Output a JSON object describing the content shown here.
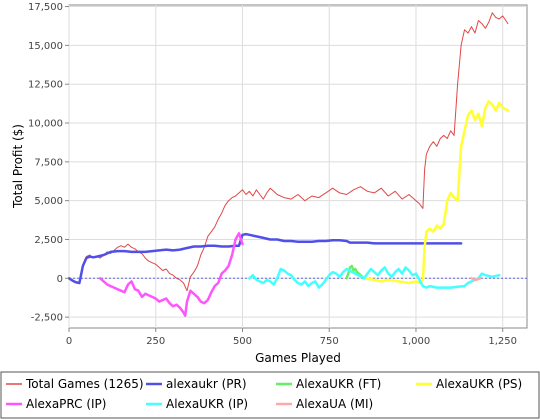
{
  "chart_data": {
    "type": "line",
    "title": "",
    "xlabel": "Games Played",
    "ylabel": "Total Profit ($)",
    "xlim": [
      0,
      1320
    ],
    "ylim": [
      -3200,
      17600
    ],
    "x_ticks": [
      {
        "value": 0,
        "label": "0"
      },
      {
        "value": 250,
        "label": "250"
      },
      {
        "value": 500,
        "label": "500"
      },
      {
        "value": 750,
        "label": "750"
      },
      {
        "value": 1000,
        "label": "1,000"
      },
      {
        "value": 1250,
        "label": "1,250"
      }
    ],
    "y_ticks": [
      {
        "value": -2500,
        "label": "-2,500"
      },
      {
        "value": 0,
        "label": "0"
      },
      {
        "value": 2500,
        "label": "2,500"
      },
      {
        "value": 5000,
        "label": "5,000"
      },
      {
        "value": 7500,
        "label": "7,500"
      },
      {
        "value": 10000,
        "label": "10,000"
      },
      {
        "value": 12500,
        "label": "12,500"
      },
      {
        "value": 15000,
        "label": "15,000"
      },
      {
        "value": 17500,
        "label": "17,500"
      }
    ],
    "grid": true,
    "legend_position": "bottom",
    "series": [
      {
        "name": "Total Games (1265)",
        "color": "#e04848",
        "width": 1,
        "x": [
          0,
          10,
          20,
          30,
          40,
          50,
          60,
          70,
          80,
          90,
          100,
          110,
          120,
          130,
          140,
          150,
          160,
          170,
          180,
          190,
          200,
          210,
          220,
          230,
          240,
          250,
          260,
          270,
          280,
          290,
          300,
          310,
          320,
          330,
          340,
          350,
          360,
          370,
          380,
          390,
          400,
          410,
          420,
          430,
          440,
          450,
          460,
          470,
          480,
          490,
          500,
          510,
          520,
          530,
          540,
          550,
          560,
          570,
          580,
          590,
          600,
          620,
          640,
          660,
          680,
          700,
          720,
          740,
          760,
          780,
          800,
          820,
          840,
          860,
          880,
          900,
          920,
          940,
          960,
          980,
          1000,
          1010,
          1020,
          1025,
          1030,
          1040,
          1050,
          1060,
          1070,
          1080,
          1090,
          1100,
          1110,
          1120,
          1130,
          1140,
          1150,
          1160,
          1170,
          1180,
          1190,
          1200,
          1210,
          1220,
          1230,
          1240,
          1250,
          1265
        ],
        "y": [
          0,
          -200,
          -300,
          -350,
          900,
          1400,
          1500,
          1300,
          1400,
          1300,
          1500,
          1700,
          1600,
          1800,
          2000,
          2100,
          2000,
          2200,
          2000,
          1900,
          1700,
          1600,
          1300,
          1100,
          1000,
          900,
          700,
          500,
          600,
          300,
          200,
          0,
          -100,
          -300,
          -800,
          100,
          400,
          800,
          1500,
          2000,
          2700,
          3000,
          3300,
          3800,
          4200,
          4700,
          5000,
          5200,
          5300,
          5500,
          5700,
          5400,
          5600,
          5300,
          5700,
          5400,
          5100,
          5500,
          5800,
          5600,
          5400,
          5200,
          5100,
          5400,
          5000,
          5300,
          5200,
          5500,
          5800,
          5500,
          5400,
          5700,
          5900,
          5600,
          5500,
          5800,
          5300,
          5600,
          5100,
          5400,
          5000,
          4800,
          4500,
          7000,
          8000,
          8500,
          8800,
          8500,
          9000,
          9200,
          9000,
          9500,
          9200,
          12500,
          15000,
          16000,
          15800,
          16200,
          15800,
          16600,
          16400,
          16100,
          16500,
          17100,
          16800,
          16700,
          16900,
          16400
        ],
        "style": "solid"
      },
      {
        "name": "alexaukr (PR)",
        "color": "#5050e8",
        "width": 2.5,
        "x": [
          0,
          10,
          20,
          30,
          40,
          50,
          60,
          70,
          80,
          100,
          120,
          140,
          160,
          180,
          200,
          220,
          240,
          260,
          280,
          300,
          320,
          340,
          360,
          380,
          400,
          420,
          440,
          460,
          480,
          490,
          500,
          510,
          520,
          540,
          560,
          580,
          600,
          620,
          640,
          660,
          680,
          700,
          720,
          740,
          760,
          780,
          800,
          810,
          820,
          840,
          860,
          880,
          900,
          920,
          940,
          960,
          980,
          1000,
          1050,
          1100,
          1130
        ],
        "y": [
          0,
          -150,
          -250,
          -300,
          800,
          1300,
          1400,
          1350,
          1400,
          1500,
          1700,
          1750,
          1750,
          1700,
          1700,
          1700,
          1750,
          1800,
          1850,
          1800,
          1850,
          1950,
          2050,
          2050,
          2100,
          2100,
          2050,
          2050,
          2100,
          2100,
          2800,
          2850,
          2800,
          2700,
          2600,
          2500,
          2500,
          2400,
          2400,
          2350,
          2350,
          2350,
          2400,
          2400,
          2450,
          2450,
          2400,
          2300,
          2300,
          2300,
          2300,
          2250,
          2250,
          2250,
          2250,
          2250,
          2250,
          2250,
          2250,
          2250,
          2250
        ],
        "style": "solid"
      },
      {
        "name": "AlexaUKR (FT)",
        "color": "#66ee66",
        "width": 2.5,
        "x": [
          800,
          805,
          810,
          815,
          820,
          825,
          830,
          835,
          840,
          845,
          850
        ],
        "y": [
          0,
          300,
          700,
          800,
          500,
          600,
          400,
          300,
          200,
          100,
          0
        ],
        "style": "solid"
      },
      {
        "name": "AlexaUKR (PS)",
        "color": "#ffff33",
        "width": 2.5,
        "x": [
          850,
          880,
          900,
          920,
          950,
          980,
          1000,
          1010,
          1020,
          1025,
          1030,
          1040,
          1050,
          1060,
          1070,
          1080,
          1090,
          1100,
          1110,
          1120,
          1130,
          1140,
          1150,
          1160,
          1170,
          1180,
          1190,
          1200,
          1210,
          1220,
          1230,
          1240,
          1250,
          1265
        ],
        "y": [
          0,
          -100,
          -200,
          -100,
          -200,
          -300,
          -200,
          -300,
          -100,
          2000,
          3000,
          3200,
          3000,
          3400,
          3200,
          3500,
          5000,
          5500,
          5200,
          5000,
          8500,
          9500,
          10500,
          10800,
          10200,
          10600,
          9800,
          11000,
          11400,
          11200,
          10800,
          11300,
          11000,
          10800
        ],
        "style": "solid"
      },
      {
        "name": "AlexaPRC (IP)",
        "color": "#ff55ff",
        "width": 2.5,
        "x": [
          90,
          100,
          110,
          120,
          130,
          140,
          150,
          160,
          170,
          180,
          190,
          200,
          210,
          220,
          230,
          240,
          250,
          260,
          270,
          280,
          290,
          300,
          310,
          320,
          330,
          335,
          340,
          350,
          360,
          370,
          380,
          390,
          400,
          410,
          420,
          430,
          440,
          450,
          460,
          470,
          480,
          490,
          500
        ],
        "y": [
          0,
          -200,
          -400,
          -500,
          -600,
          -700,
          -800,
          -900,
          -400,
          -200,
          -700,
          -800,
          -1200,
          -1000,
          -1100,
          -1200,
          -1300,
          -1500,
          -1400,
          -1300,
          -1600,
          -1800,
          -1700,
          -1900,
          -2200,
          -2400,
          -1500,
          -800,
          -1000,
          -1200,
          -1500,
          -1600,
          -1400,
          -900,
          -500,
          -300,
          300,
          500,
          800,
          1500,
          2500,
          2900,
          2200
        ],
        "style": "solid"
      },
      {
        "name": "AlexaUKR (IP)",
        "color": "#44ffff",
        "width": 2.5,
        "x": [
          520,
          530,
          540,
          550,
          560,
          570,
          580,
          590,
          600,
          610,
          620,
          630,
          640,
          650,
          660,
          670,
          680,
          690,
          700,
          710,
          720,
          730,
          740,
          750,
          760,
          770,
          780,
          790,
          800,
          850,
          860,
          870,
          880,
          890,
          900,
          910,
          920,
          930,
          940,
          950,
          960,
          970,
          980,
          990,
          1000,
          1010,
          1020,
          1030,
          1040,
          1060,
          1080,
          1100,
          1120,
          1140,
          1150,
          1160,
          1170,
          1180,
          1190,
          1200,
          1220,
          1240
        ],
        "y": [
          0,
          200,
          -100,
          -200,
          -300,
          -100,
          -200,
          -400,
          0,
          600,
          500,
          300,
          200,
          -100,
          -300,
          -400,
          -200,
          -500,
          -300,
          -200,
          -600,
          -400,
          -100,
          200,
          400,
          300,
          100,
          400,
          600,
          0,
          300,
          600,
          400,
          200,
          500,
          700,
          300,
          100,
          400,
          600,
          300,
          700,
          500,
          200,
          300,
          -100,
          -500,
          -600,
          -500,
          -600,
          -600,
          -600,
          -550,
          -500,
          -300,
          -200,
          -100,
          0,
          300,
          200,
          100,
          200
        ],
        "style": "solid"
      },
      {
        "name": "AlexaUA (MI)",
        "color": "#ffaaaa",
        "width": 2.5,
        "x": [
          1160,
          1170,
          1180,
          1185
        ],
        "y": [
          0,
          -100,
          -50,
          0
        ],
        "style": "solid"
      }
    ]
  }
}
